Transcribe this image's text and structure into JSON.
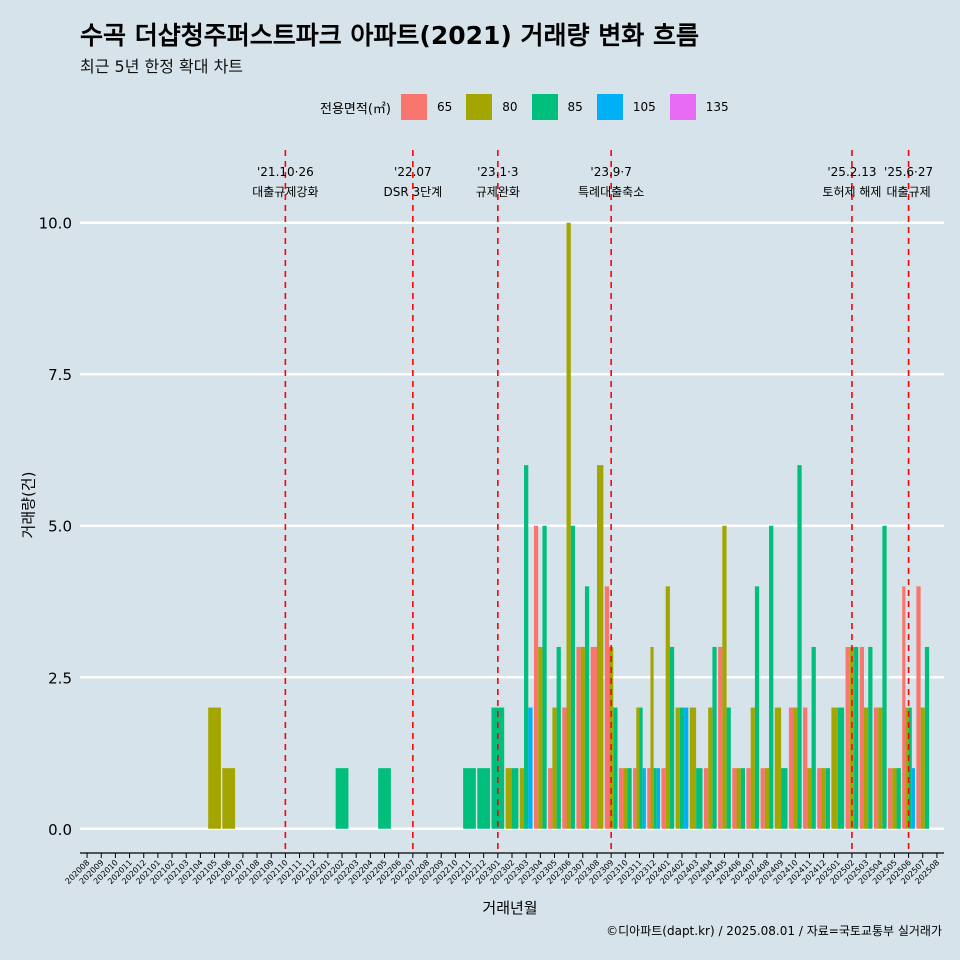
{
  "title": "수곡 더샵청주퍼스트파크 아파트(2021) 거래량 변화 흐름",
  "subtitle": "최근 5년 한정 확대 차트",
  "caption": "©디아파트(dapt.kr) / 2025.08.01 / 자료=국토교통부 실거래가",
  "legend": {
    "title": "전용면적(㎡)",
    "items": [
      {
        "label": "65",
        "color": "#f8766d"
      },
      {
        "label": "80",
        "color": "#a3a500"
      },
      {
        "label": "85",
        "color": "#00bf7d"
      },
      {
        "label": "105",
        "color": "#00b0f6"
      },
      {
        "label": "135",
        "color": "#e76bf3"
      }
    ]
  },
  "chart_data": {
    "type": "bar",
    "xlabel": "거래년월",
    "ylabel": "거래량(건)",
    "ylim": [
      -0.4,
      11.2
    ],
    "yticks": [
      0.0,
      2.5,
      5.0,
      7.5,
      10.0
    ],
    "ytick_labels": [
      "0.0",
      "2.5",
      "5.0",
      "7.5",
      "10.0"
    ],
    "grid": "horizontal",
    "legend_position": "top",
    "categories": [
      "202008",
      "202009",
      "202010",
      "202011",
      "202012",
      "202101",
      "202102",
      "202103",
      "202104",
      "202105",
      "202106",
      "202107",
      "202108",
      "202109",
      "202110",
      "202111",
      "202112",
      "202201",
      "202202",
      "202203",
      "202204",
      "202205",
      "202206",
      "202207",
      "202208",
      "202209",
      "202210",
      "202211",
      "202212",
      "202301",
      "202302",
      "202303",
      "202304",
      "202305",
      "202306",
      "202307",
      "202308",
      "202309",
      "202310",
      "202311",
      "202312",
      "202401",
      "202402",
      "202403",
      "202404",
      "202405",
      "202406",
      "202407",
      "202408",
      "202409",
      "202410",
      "202411",
      "202412",
      "202501",
      "202502",
      "202503",
      "202504",
      "202505",
      "202506",
      "202507",
      "202508"
    ],
    "series": [
      {
        "name": "65",
        "color": "#f8766d",
        "values": [
          0,
          0,
          0,
          0,
          0,
          0,
          0,
          0,
          0,
          0,
          0,
          0,
          0,
          0,
          0,
          0,
          0,
          0,
          0,
          0,
          0,
          0,
          0,
          0,
          0,
          0,
          0,
          0,
          0,
          0,
          0,
          0,
          5,
          1,
          2,
          3,
          3,
          4,
          1,
          1,
          1,
          1,
          0,
          0,
          1,
          3,
          1,
          1,
          1,
          0,
          2,
          2,
          1,
          0,
          3,
          3,
          2,
          1,
          4,
          4,
          0
        ]
      },
      {
        "name": "80",
        "color": "#a3a500",
        "values": [
          0,
          0,
          0,
          0,
          0,
          0,
          0,
          0,
          0,
          2,
          1,
          0,
          0,
          0,
          0,
          0,
          0,
          0,
          0,
          0,
          0,
          0,
          0,
          0,
          0,
          0,
          0,
          0,
          0,
          0,
          1,
          1,
          3,
          2,
          10,
          3,
          6,
          3,
          1,
          2,
          3,
          4,
          2,
          2,
          2,
          5,
          1,
          2,
          1,
          2,
          2,
          1,
          1,
          2,
          3,
          2,
          2,
          1,
          2,
          2,
          0
        ]
      },
      {
        "name": "85",
        "color": "#00bf7d",
        "values": [
          0,
          0,
          0,
          0,
          0,
          0,
          0,
          0,
          0,
          0,
          0,
          0,
          0,
          0,
          0,
          0,
          0,
          0,
          1,
          0,
          0,
          1,
          0,
          0,
          0,
          0,
          0,
          1,
          1,
          2,
          1,
          6,
          5,
          3,
          5,
          4,
          0,
          2,
          1,
          2,
          1,
          3,
          2,
          1,
          3,
          2,
          1,
          4,
          5,
          1,
          6,
          3,
          1,
          2,
          3,
          3,
          5,
          1,
          2,
          3,
          0
        ]
      },
      {
        "name": "105",
        "color": "#00b0f6",
        "values": [
          0,
          0,
          0,
          0,
          0,
          0,
          0,
          0,
          0,
          0,
          0,
          0,
          0,
          0,
          0,
          0,
          0,
          0,
          0,
          0,
          0,
          0,
          0,
          0,
          0,
          0,
          0,
          0,
          0,
          0,
          0,
          2,
          0,
          0,
          0,
          0,
          0,
          0,
          0,
          1,
          1,
          0,
          2,
          0,
          0,
          0,
          0,
          0,
          0,
          0,
          0,
          0,
          0,
          0,
          0,
          0,
          0,
          0,
          1,
          0,
          0
        ]
      },
      {
        "name": "135",
        "color": "#e76bf3",
        "values": [
          0,
          0,
          0,
          0,
          0,
          0,
          0,
          0,
          0,
          0,
          0,
          0,
          0,
          0,
          0,
          0,
          0,
          0,
          0,
          0,
          0,
          0,
          0,
          0,
          0,
          0,
          0,
          0,
          0,
          0,
          0,
          0,
          0,
          0,
          0,
          0,
          0,
          0,
          0,
          0,
          0,
          0,
          0,
          0,
          0,
          0,
          0,
          0,
          0,
          0,
          0,
          0,
          0,
          0,
          0,
          0,
          0,
          0,
          0,
          0,
          0
        ]
      }
    ],
    "annotations": [
      {
        "x": "202110",
        "date": "'21.10·26",
        "label": "대출규제강화"
      },
      {
        "x": "202207",
        "date": "'22.07",
        "label": "DSR 3단계"
      },
      {
        "x": "202301",
        "date": "'23.1·3",
        "label": "규제완화"
      },
      {
        "x": "202309",
        "date": "'23.9·7",
        "label": "특례대출축소"
      },
      {
        "x": "202502",
        "date": "'25.2.13",
        "label": "토허제 해제"
      },
      {
        "x": "202506",
        "date": "'25.6·27",
        "label": "대출규제"
      }
    ],
    "annotation_line_color": "#ff0000"
  }
}
